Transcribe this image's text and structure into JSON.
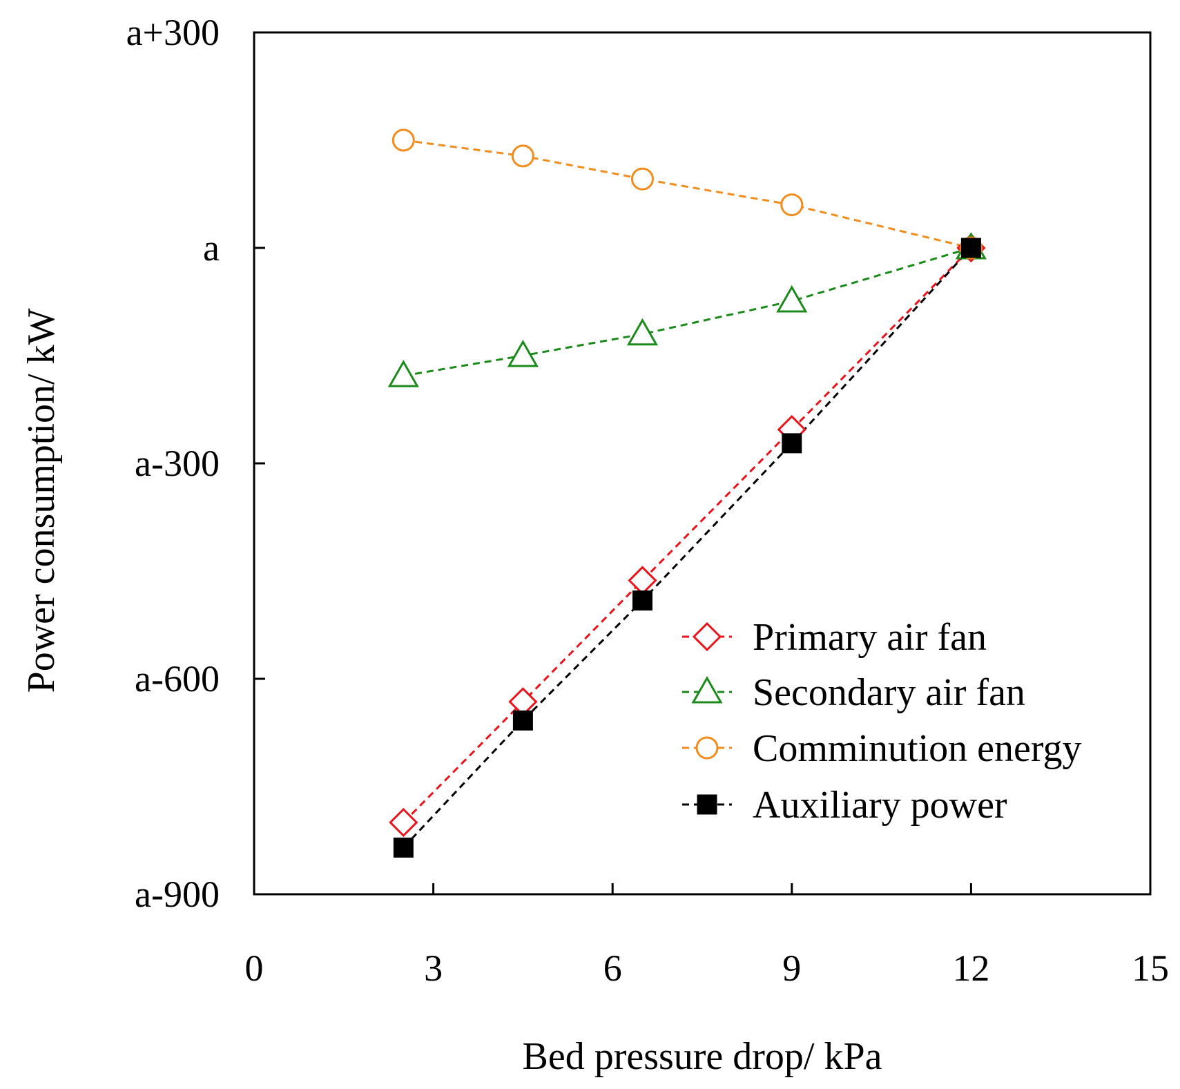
{
  "chart_data": {
    "type": "line",
    "title": "",
    "xlabel": "Bed pressure drop/ kPa",
    "ylabel": "Power consumption/ kW",
    "xlim": [
      0,
      15
    ],
    "ylim": [
      -900,
      300
    ],
    "x_ticks": [
      0,
      3,
      6,
      9,
      12,
      15
    ],
    "x_tick_labels": [
      "0",
      "3",
      "6",
      "9",
      "12",
      "15"
    ],
    "y_ticks": [
      -900,
      -600,
      -300,
      0,
      300
    ],
    "y_tick_labels": [
      "a-900",
      "a-600",
      "a-300",
      "a",
      "a+300"
    ],
    "y_baseline_note": "values relative to a",
    "grid": false,
    "legend_position": "bottom-right",
    "x": [
      2.5,
      4.5,
      6.5,
      9,
      12
    ],
    "series": [
      {
        "name": "Primary air fan",
        "marker": "diamond",
        "color": "#e8131b",
        "filled": false,
        "values": [
          -800,
          -632,
          -463,
          -253,
          0
        ]
      },
      {
        "name": "Secondary air fan",
        "marker": "triangle",
        "color": "#1a8a1a",
        "filled": false,
        "values": [
          -178,
          -150,
          -120,
          -74,
          0
        ]
      },
      {
        "name": "Comminution energy",
        "marker": "circle",
        "color": "#f28c1c",
        "filled": false,
        "values": [
          150,
          128,
          96,
          60,
          0
        ]
      },
      {
        "name": "Auxiliary power",
        "marker": "square",
        "color": "#000000",
        "filled": true,
        "values": [
          -835,
          -658,
          -491,
          -272,
          0
        ]
      }
    ]
  }
}
